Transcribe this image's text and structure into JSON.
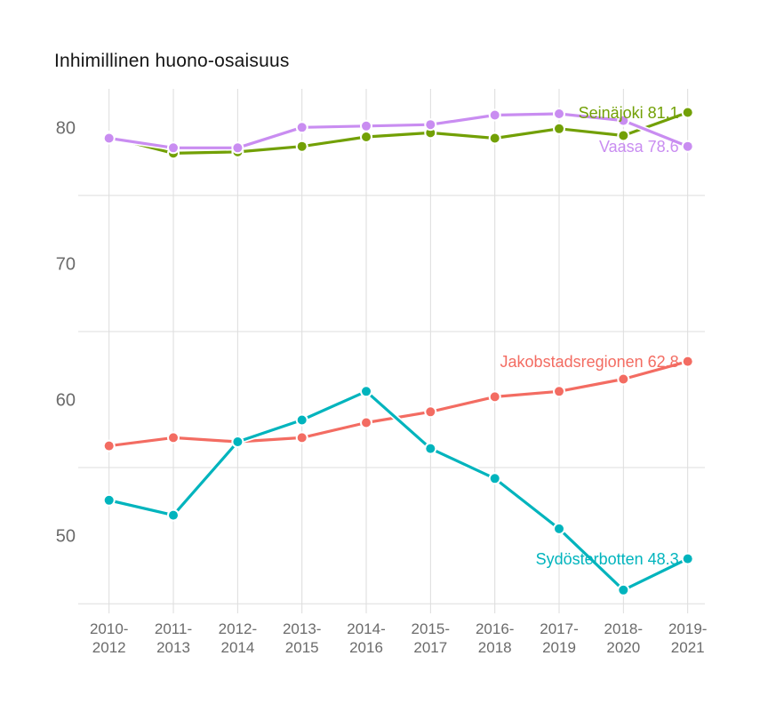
{
  "title": "Inhimillinen huono-osaisuus",
  "chart_data": {
    "type": "line",
    "title": "Inhimillinen huono-osaisuus",
    "categories": [
      "2010-2012",
      "2011-2013",
      "2012-2014",
      "2013-2015",
      "2014-2016",
      "2015-2017",
      "2016-2018",
      "2017-2019",
      "2018-2020",
      "2019-2021"
    ],
    "x_tick_style": "two-line",
    "grid": true,
    "ylim": [
      44,
      83
    ],
    "y_axis": {
      "tick_labels": [
        80,
        70,
        60,
        50
      ],
      "gridlines": [
        75,
        65,
        55,
        45
      ]
    },
    "legend_position": "end-of-line-labels",
    "series": [
      {
        "name": "Seinäjoki",
        "color": "#72a005",
        "end_label": "Seinäjoki 81.1",
        "end_value": 81.1,
        "values": [
          79.3,
          78.1,
          78.2,
          78.6,
          79.3,
          79.6,
          79.2,
          79.9,
          79.4,
          81.1
        ]
      },
      {
        "name": "Jakobstadsregionen",
        "color": "#f36c62",
        "end_label": "Jakobstadsregionen 62.8",
        "end_value": 62.8,
        "values": [
          56.6,
          57.2,
          56.9,
          57.2,
          58.3,
          59.1,
          60.2,
          60.6,
          61.5,
          62.8
        ]
      },
      {
        "name": "Sydösterbotten",
        "color": "#00b4bd",
        "end_label": "Sydösterbotten 48.3",
        "end_value": 48.3,
        "values": [
          52.6,
          51.5,
          56.9,
          58.5,
          60.6,
          56.4,
          54.2,
          50.5,
          46.0,
          48.3
        ]
      },
      {
        "name": "Vaasa",
        "color": "#c98df1",
        "end_label": "Vaasa 78.6",
        "end_value": 78.6,
        "values": [
          79.2,
          78.5,
          78.5,
          80.0,
          80.1,
          80.2,
          80.9,
          81.0,
          80.5,
          78.6
        ]
      }
    ]
  }
}
